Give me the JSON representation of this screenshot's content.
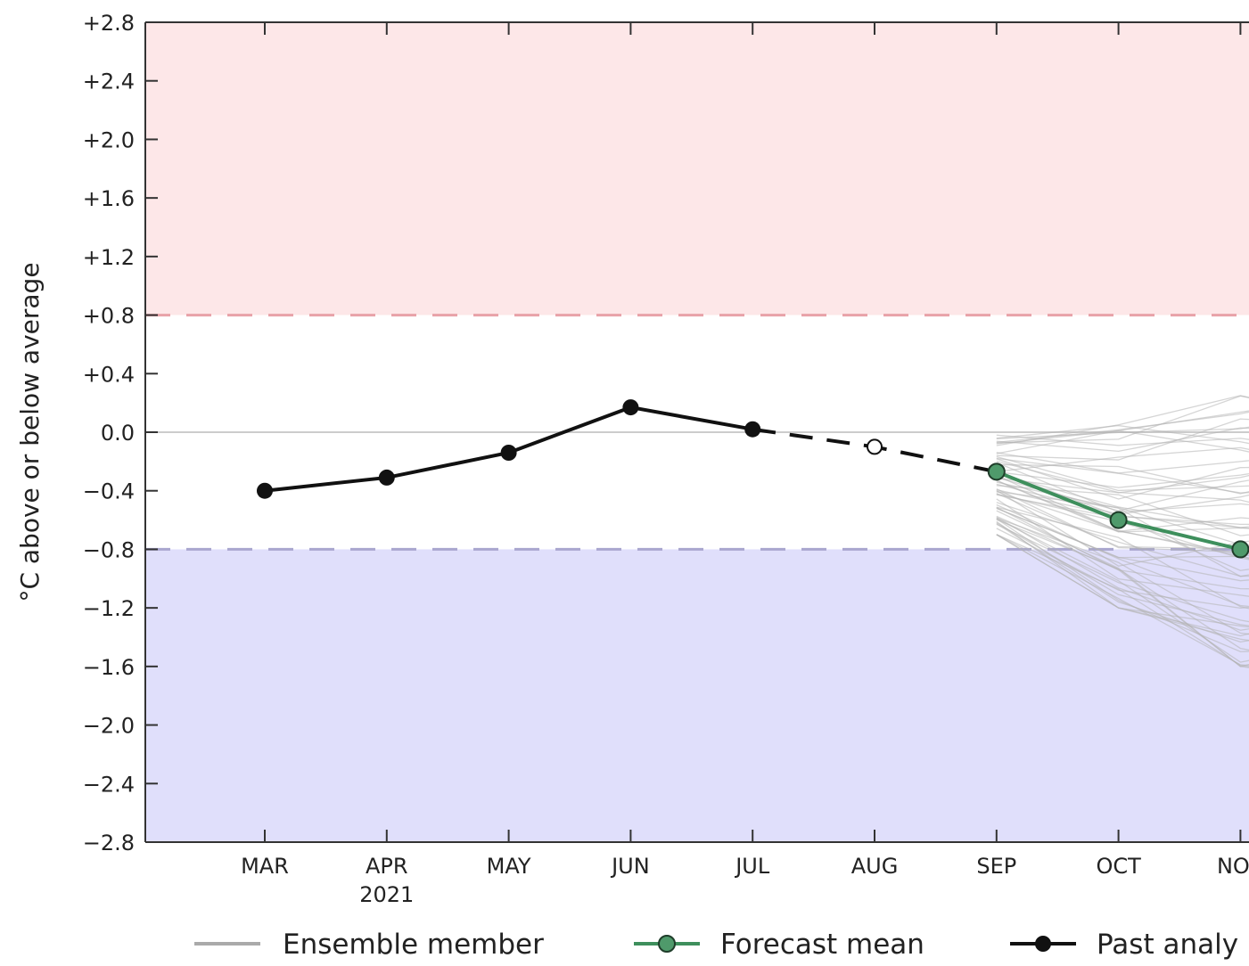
{
  "chart_data": {
    "type": "line",
    "ylabel": "°C above or below average",
    "ylim": [
      -2.8,
      2.8
    ],
    "y_ticks": [
      "+2.8",
      "+2.4",
      "+2.0",
      "+1.6",
      "+1.2",
      "+0.8",
      "+0.4",
      "0.0",
      "−0.4",
      "−0.8",
      "−1.2",
      "−1.6",
      "−2.0",
      "−2.4",
      "−2.8"
    ],
    "y_tick_values": [
      2.8,
      2.4,
      2.0,
      1.6,
      1.2,
      0.8,
      0.4,
      0.0,
      -0.4,
      -0.8,
      -1.2,
      -1.6,
      -2.0,
      -2.4,
      -2.8
    ],
    "x_ticks": [
      "MAR",
      "APR",
      "MAY",
      "JUN",
      "JUL",
      "AUG",
      "SEP",
      "OCT",
      "NOV"
    ],
    "x_year_label": "2021",
    "thresholds": {
      "warm": 0.8,
      "cool": -0.8
    },
    "colors": {
      "warm_band": "#fde7e8",
      "cool_band": "#e0dffb",
      "warm_line": "#e8a2a8",
      "cool_line": "#a9a6cf",
      "past": "#111111",
      "forecast": "#3e8f5c",
      "forecast_marker": "#4f9a6b",
      "ensemble": "#b3b3b3"
    },
    "series": [
      {
        "name": "Past analysis",
        "x": [
          "MAR",
          "APR",
          "MAY",
          "JUN",
          "JUL"
        ],
        "values": [
          -0.4,
          -0.31,
          -0.14,
          0.17,
          0.02
        ]
      },
      {
        "name": "Forecast mean",
        "x": [
          "SEP",
          "OCT",
          "NOV"
        ],
        "values": [
          -0.27,
          -0.6,
          -0.8
        ]
      }
    ],
    "bridge": {
      "x": [
        "JUL",
        "AUG",
        "SEP"
      ],
      "values": [
        0.02,
        -0.1,
        -0.27
      ],
      "open_marker_at": "AUG"
    },
    "ensemble_range": {
      "SEP": [
        -0.7,
        0.0
      ],
      "OCT": [
        -1.2,
        0.05
      ],
      "NOV": [
        -1.6,
        0.25
      ]
    },
    "legend": [
      {
        "label": "Ensemble member"
      },
      {
        "label": "Forecast mean"
      },
      {
        "label": "Past analy"
      }
    ]
  }
}
